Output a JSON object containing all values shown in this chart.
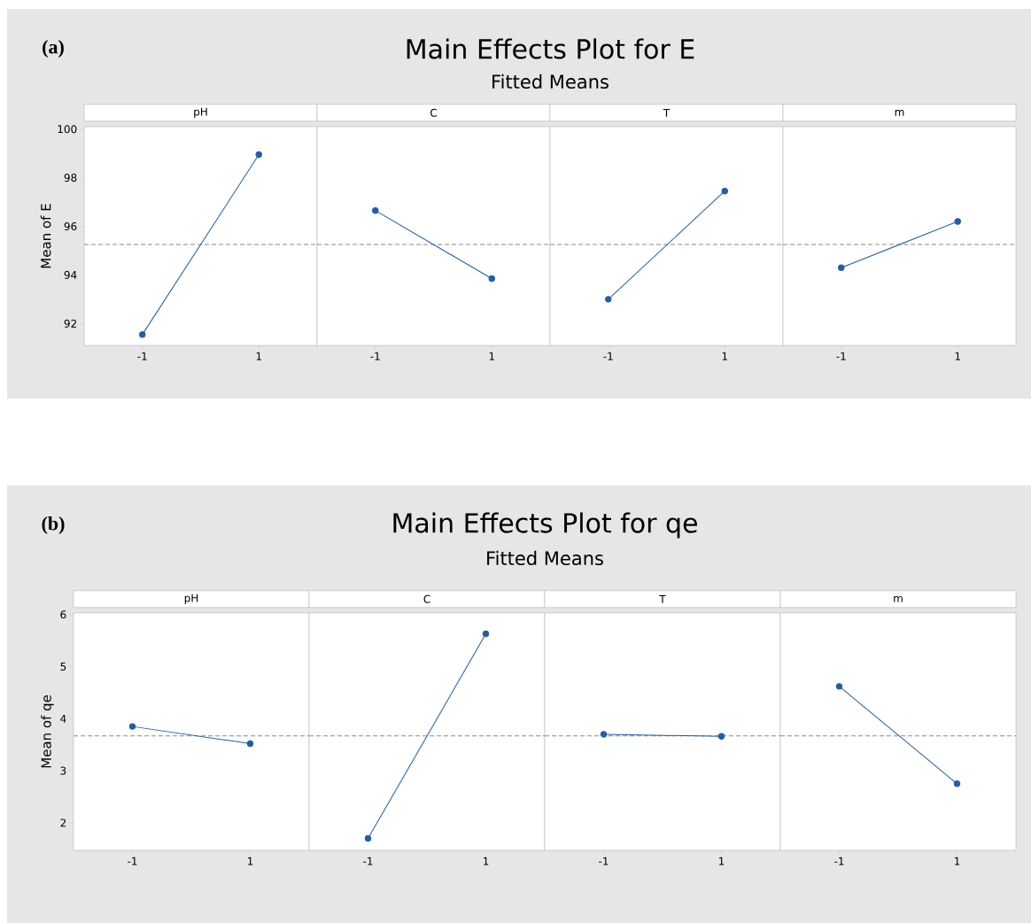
{
  "chart_data": [
    {
      "type": "line",
      "title": "pH",
      "ylabel": "Mean of E",
      "annotations": [
        "(a)",
        "Main Effects Plot for E",
        "Fitted Means"
      ],
      "categories": [
        "-1",
        "1"
      ],
      "values": [
        91.55,
        98.95
      ],
      "color": "#1f5da8",
      "marker": "circle",
      "line_style": "solid",
      "ylim": [
        91.1,
        100.1
      ],
      "yticks": [
        92,
        94,
        96,
        98,
        100
      ],
      "ref_lines": [
        {
          "axis": "y",
          "value": 95.25,
          "color": "#8c8c8c",
          "line_style": "dashed"
        }
      ]
    },
    {
      "type": "line",
      "title": "C",
      "categories": [
        "-1",
        "1"
      ],
      "values": [
        96.65,
        93.85
      ],
      "color": "#1f5da8",
      "marker": "circle",
      "line_style": "solid",
      "ylim": [
        91.1,
        100.1
      ],
      "yticks": [
        92,
        94,
        96,
        98,
        100
      ],
      "tick_labels": "x",
      "ref_lines": [
        {
          "axis": "y",
          "value": 95.25,
          "color": "#8c8c8c",
          "line_style": "dashed"
        }
      ]
    },
    {
      "type": "line",
      "title": "T",
      "categories": [
        "-1",
        "1"
      ],
      "values": [
        93.0,
        97.45
      ],
      "color": "#1f5da8",
      "marker": "circle",
      "line_style": "solid",
      "ylim": [
        91.1,
        100.1
      ],
      "yticks": [
        92,
        94,
        96,
        98,
        100
      ],
      "tick_labels": "x",
      "ref_lines": [
        {
          "axis": "y",
          "value": 95.25,
          "color": "#8c8c8c",
          "line_style": "dashed"
        }
      ]
    },
    {
      "type": "line",
      "title": "m",
      "categories": [
        "-1",
        "1"
      ],
      "values": [
        94.3,
        96.2
      ],
      "color": "#1f5da8",
      "marker": "circle",
      "line_style": "solid",
      "ylim": [
        91.1,
        100.1
      ],
      "yticks": [
        92,
        94,
        96,
        98,
        100
      ],
      "tick_labels": "x",
      "ref_lines": [
        {
          "axis": "y",
          "value": 95.25,
          "color": "#8c8c8c",
          "line_style": "dashed"
        }
      ]
    },
    {
      "type": "line",
      "title": "pH",
      "ylabel": "Mean of qe",
      "annotations": [
        "(b)",
        "Main Effects Plot for qe",
        "Fitted Means"
      ],
      "categories": [
        "-1",
        "1"
      ],
      "values": [
        3.85,
        3.52
      ],
      "color": "#1f5da8",
      "marker": "circle",
      "line_style": "solid",
      "ylim": [
        1.47,
        6.03
      ],
      "yticks": [
        2,
        3,
        4,
        5,
        6
      ],
      "ref_lines": [
        {
          "axis": "y",
          "value": 3.67,
          "color": "#8c8c8c",
          "line_style": "dashed"
        }
      ]
    },
    {
      "type": "line",
      "title": "C",
      "categories": [
        "-1",
        "1"
      ],
      "values": [
        1.7,
        5.63
      ],
      "color": "#1f5da8",
      "marker": "circle",
      "line_style": "solid",
      "ylim": [
        1.47,
        6.03
      ],
      "yticks": [
        2,
        3,
        4,
        5,
        6
      ],
      "tick_labels": "x",
      "ref_lines": [
        {
          "axis": "y",
          "value": 3.67,
          "color": "#8c8c8c",
          "line_style": "dashed"
        }
      ]
    },
    {
      "type": "line",
      "title": "T",
      "categories": [
        "-1",
        "1"
      ],
      "values": [
        3.7,
        3.66
      ],
      "color": "#1f5da8",
      "marker": "circle",
      "line_style": "solid",
      "ylim": [
        1.47,
        6.03
      ],
      "yticks": [
        2,
        3,
        4,
        5,
        6
      ],
      "tick_labels": "x",
      "ref_lines": [
        {
          "axis": "y",
          "value": 3.67,
          "color": "#8c8c8c",
          "line_style": "dashed"
        }
      ]
    },
    {
      "type": "line",
      "title": "m",
      "categories": [
        "-1",
        "1"
      ],
      "values": [
        4.62,
        2.75
      ],
      "color": "#1f5da8",
      "marker": "circle",
      "line_style": "solid",
      "ylim": [
        1.47,
        6.03
      ],
      "yticks": [
        2,
        3,
        4,
        5,
        6
      ],
      "tick_labels": "x",
      "ref_lines": [
        {
          "axis": "y",
          "value": 3.67,
          "color": "#8c8c8c",
          "line_style": "dashed"
        }
      ]
    }
  ]
}
